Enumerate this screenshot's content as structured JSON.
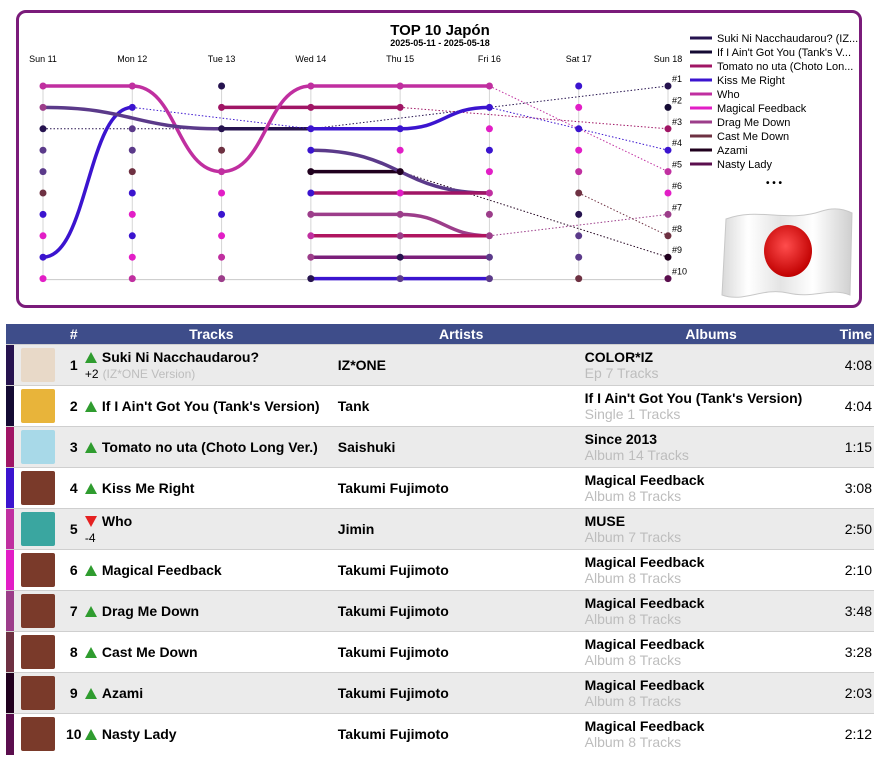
{
  "chart_data": {
    "type": "line",
    "title": "TOP 10 Japón",
    "subtitle": "2025-05-11 - 2025-05-18",
    "x": [
      "Sun 11",
      "Mon 12",
      "Tue 13",
      "Wed 14",
      "Thu 15",
      "Fri 16",
      "Sat 17",
      "Sun 18"
    ],
    "rank_labels": [
      "#1",
      "#2",
      "#3",
      "#4",
      "#5",
      "#6",
      "#7",
      "#8",
      "#9",
      "#10"
    ],
    "ylim": [
      1,
      10
    ],
    "legend_position": "right",
    "series": [
      {
        "name": "Suki Ni Nacchaudarou? (IZ...",
        "color": "#26134f",
        "ranks": [
          3,
          null,
          3,
          3,
          null,
          null,
          null,
          1
        ]
      },
      {
        "name": "If I Ain't Got You (Tank's V...",
        "color": "#140a33",
        "ranks": [
          null,
          null,
          null,
          null,
          null,
          null,
          null,
          2
        ]
      },
      {
        "name": "Tomato no uta (Choto Lon...",
        "color": "#a01565",
        "ranks": [
          null,
          null,
          2,
          2,
          2,
          null,
          null,
          3
        ]
      },
      {
        "name": "Kiss Me Right",
        "color": "#3b14cf",
        "ranks": [
          9,
          2,
          null,
          3,
          3,
          2,
          null,
          4
        ]
      },
      {
        "name": "Who",
        "color": "#c02fa0",
        "ranks": [
          1,
          1,
          5,
          1,
          1,
          1,
          null,
          5
        ]
      },
      {
        "name": "Magical Feedback",
        "color": "#e21ec6",
        "ranks": [
          null,
          null,
          null,
          null,
          null,
          null,
          null,
          6
        ]
      },
      {
        "name": "Drag Me Down",
        "color": "#9c3d8a",
        "ranks": [
          null,
          null,
          null,
          7,
          7,
          8,
          null,
          7
        ]
      },
      {
        "name": "Cast Me Down",
        "color": "#6e3142",
        "ranks": [
          null,
          null,
          null,
          null,
          null,
          null,
          6,
          8
        ]
      },
      {
        "name": "Azami",
        "color": "#20001e",
        "ranks": [
          null,
          null,
          null,
          5,
          5,
          null,
          null,
          9
        ]
      },
      {
        "name": "Nasty Lady",
        "color": "#5b0e4e",
        "ranks": [
          null,
          null,
          null,
          null,
          null,
          null,
          null,
          10
        ]
      }
    ],
    "extra_lines": [
      {
        "color": "#5b3a8a",
        "segments": [
          [
            0,
            2,
            2,
            3
          ],
          [
            3,
            4,
            5,
            6
          ]
        ]
      },
      {
        "color": "#a01565",
        "segments": [
          [
            3,
            6,
            5,
            6
          ]
        ]
      },
      {
        "color": "#b01560",
        "segments": [
          [
            3,
            8,
            5,
            8
          ]
        ]
      },
      {
        "color": "#7b1f7a",
        "segments": [
          [
            3,
            9,
            5,
            9
          ]
        ]
      },
      {
        "color": "#3b14cf",
        "segments": [
          [
            3,
            10,
            5,
            10
          ]
        ]
      }
    ],
    "ellipsis": "• • •"
  },
  "table": {
    "headers": {
      "rank": "#",
      "tracks": "Tracks",
      "artists": "Artists",
      "albums": "Albums",
      "time": "Time"
    },
    "rows": [
      {
        "rank": "1",
        "dir": "up",
        "change": "+2",
        "title": "Suki Ni Nacchaudarou?",
        "version": "(IZ*ONE Version)",
        "artist": "IZ*ONE",
        "album": "COLOR*IZ",
        "album_info": "Ep 7 Tracks",
        "time": "4:08",
        "bar": "#26134f",
        "cover": "#e8d9c8"
      },
      {
        "rank": "2",
        "dir": "up",
        "change": "",
        "title": "If I Ain't Got You (Tank's Version)",
        "version": "",
        "artist": "Tank",
        "album": "If I Ain't Got You (Tank's Version)",
        "album_info": "Single 1 Tracks",
        "time": "4:04",
        "bar": "#140a33",
        "cover": "#e8b43a"
      },
      {
        "rank": "3",
        "dir": "up",
        "change": "",
        "title": "Tomato no uta (Choto Long Ver.)",
        "version": "",
        "artist": "Saishuki",
        "album": "Since 2013",
        "album_info": "Album 14 Tracks",
        "time": "1:15",
        "bar": "#a01565",
        "cover": "#a8d9e8"
      },
      {
        "rank": "4",
        "dir": "up",
        "change": "",
        "title": "Kiss Me Right",
        "version": "",
        "artist": "Takumi Fujimoto",
        "album": "Magical Feedback",
        "album_info": "Album 8 Tracks",
        "time": "3:08",
        "bar": "#3b14cf",
        "cover": "#7a3a2a"
      },
      {
        "rank": "5",
        "dir": "down",
        "change": "-4",
        "title": "Who",
        "version": "",
        "artist": "Jimin",
        "album": "MUSE",
        "album_info": "Album 7 Tracks",
        "time": "2:50",
        "bar": "#c02fa0",
        "cover": "#3aa6a0"
      },
      {
        "rank": "6",
        "dir": "up",
        "change": "",
        "title": "Magical Feedback",
        "version": "",
        "artist": "Takumi Fujimoto",
        "album": "Magical Feedback",
        "album_info": "Album 8 Tracks",
        "time": "2:10",
        "bar": "#e21ec6",
        "cover": "#7a3a2a"
      },
      {
        "rank": "7",
        "dir": "up",
        "change": "",
        "title": "Drag Me Down",
        "version": "",
        "artist": "Takumi Fujimoto",
        "album": "Magical Feedback",
        "album_info": "Album 8 Tracks",
        "time": "3:48",
        "bar": "#9c3d8a",
        "cover": "#7a3a2a"
      },
      {
        "rank": "8",
        "dir": "up",
        "change": "",
        "title": "Cast Me Down",
        "version": "",
        "artist": "Takumi Fujimoto",
        "album": "Magical Feedback",
        "album_info": "Album 8 Tracks",
        "time": "3:28",
        "bar": "#6e3142",
        "cover": "#7a3a2a"
      },
      {
        "rank": "9",
        "dir": "up",
        "change": "",
        "title": "Azami",
        "version": "",
        "artist": "Takumi Fujimoto",
        "album": "Magical Feedback",
        "album_info": "Album 8 Tracks",
        "time": "2:03",
        "bar": "#20001e",
        "cover": "#7a3a2a"
      },
      {
        "rank": "10",
        "dir": "up",
        "change": "",
        "title": "Nasty Lady",
        "version": "",
        "artist": "Takumi Fujimoto",
        "album": "Magical Feedback",
        "album_info": "Album 8 Tracks",
        "time": "2:12",
        "bar": "#5b0e4e",
        "cover": "#7a3a2a"
      }
    ]
  }
}
